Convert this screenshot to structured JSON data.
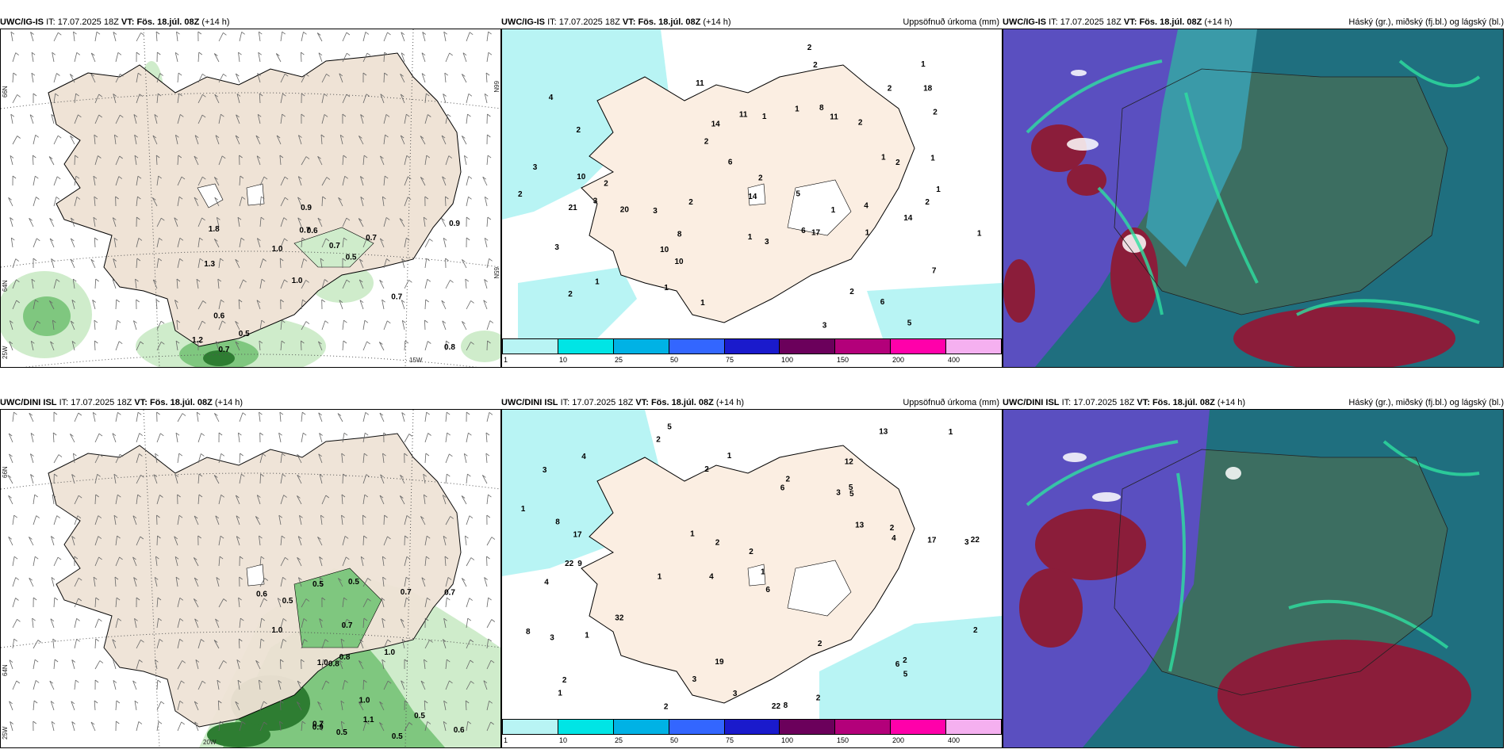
{
  "panels": [
    {
      "model": "UWC/IG-IS",
      "it_label": "IT:",
      "init": "17.07.2025 18Z",
      "vt_label": "VT:",
      "valid": "Fös. 18.júl. 08Z",
      "lead": "(+14 h)",
      "right_title": ""
    },
    {
      "model": "UWC/IG-IS",
      "it_label": "IT:",
      "init": "17.07.2025 18Z",
      "vt_label": "VT:",
      "valid": "Fös. 18.júl. 08Z",
      "lead": "(+14 h)",
      "right_title": "Uppsöfnuð úrkoma (mm)"
    },
    {
      "model": "UWC/IG-IS",
      "it_label": "IT:",
      "init": "17.07.2025 18Z",
      "vt_label": "VT:",
      "valid": "Fös. 18.júl. 08Z",
      "lead": "(+14 h)",
      "right_title": "Háský (gr.), miðský (fj.bl.) og lágský (bl.)"
    },
    {
      "model": "UWC/DINI ISL",
      "it_label": "IT:",
      "init": "17.07.2025 18Z",
      "vt_label": "VT:",
      "valid": "Fös. 18.júl. 08Z",
      "lead": "(+14 h)",
      "right_title": ""
    },
    {
      "model": "UWC/DINI ISL",
      "it_label": "IT:",
      "init": "17.07.2025 18Z",
      "vt_label": "VT:",
      "valid": "Fös. 18.júl. 08Z",
      "lead": "(+14 h)",
      "right_title": "Uppsöfnuð úrkoma (mm)"
    },
    {
      "model": "UWC/DINI ISL",
      "it_label": "IT:",
      "init": "17.07.2025 18Z",
      "vt_label": "VT:",
      "valid": "Fös. 18.júl. 08Z",
      "lead": "(+14 h)",
      "right_title": "Háský (gr.), miðský (fj.bl.) og lágský (bl.)"
    }
  ],
  "axis_labels": {
    "lat66": "66N",
    "lat64": "64N",
    "lat65": "65N",
    "lon25": "25W",
    "lon15": "15W",
    "lon20": "20W"
  },
  "precip_legend": {
    "ticks": [
      "1",
      "10",
      "25",
      "50",
      "75",
      "100",
      "150",
      "200",
      "400"
    ],
    "colors": [
      "#b8f4f4",
      "#00e5e5",
      "#00b2e5",
      "#3366ff",
      "#1a1acc",
      "#6b005b",
      "#b3007a",
      "#ff00aa",
      "#f5b0f0"
    ]
  },
  "wind_top_labels": [
    "0.8",
    "1.3",
    "0.9",
    "1.0",
    "0.7",
    "0.7",
    "0.7",
    "0.7",
    "0.6",
    "1.0",
    "1.2",
    "0.5",
    "0.6",
    "0.5",
    "0.7",
    "1.8",
    "0.9"
  ],
  "wind_bottom_labels": [
    "0.5",
    "0.5",
    "0.7",
    "0.5",
    "0.5",
    "0.5",
    "1.0",
    "0.6",
    "0.5",
    "0.7",
    "0.7",
    "1.1",
    "0.8",
    "1.0",
    "0.7",
    "1.0",
    "1.0",
    "0.9",
    "0.8",
    "0.6"
  ],
  "precip_top_labels": [
    "5",
    "3",
    "6",
    "4",
    "7",
    "2",
    "1",
    "3",
    "2",
    "11",
    "11",
    "6",
    "10",
    "11",
    "5",
    "3",
    "4",
    "2",
    "3",
    "2",
    "1",
    "1",
    "1",
    "1",
    "1",
    "10",
    "20",
    "14",
    "6",
    "18",
    "17",
    "21",
    "10",
    "8",
    "14",
    "14",
    "2",
    "2",
    "2",
    "3",
    "8",
    "3",
    "1",
    "2",
    "2",
    "2",
    "2",
    "2",
    "1",
    "1",
    "1",
    "1",
    "1",
    "2",
    "2",
    "2",
    "1"
  ],
  "precip_bottom_labels": [
    "5",
    "12",
    "3",
    "4",
    "6",
    "9",
    "3",
    "3",
    "4",
    "6",
    "2",
    "1",
    "2",
    "1",
    "22",
    "8",
    "19",
    "13",
    "13",
    "32",
    "17",
    "22",
    "22",
    "17",
    "8",
    "8",
    "2",
    "4",
    "2",
    "3",
    "6",
    "2",
    "1",
    "1",
    "2",
    "2",
    "2",
    "3",
    "1",
    "1",
    "2",
    "2",
    "2",
    "4",
    "3",
    "5",
    "5",
    "5",
    "1",
    "1",
    "2"
  ]
}
